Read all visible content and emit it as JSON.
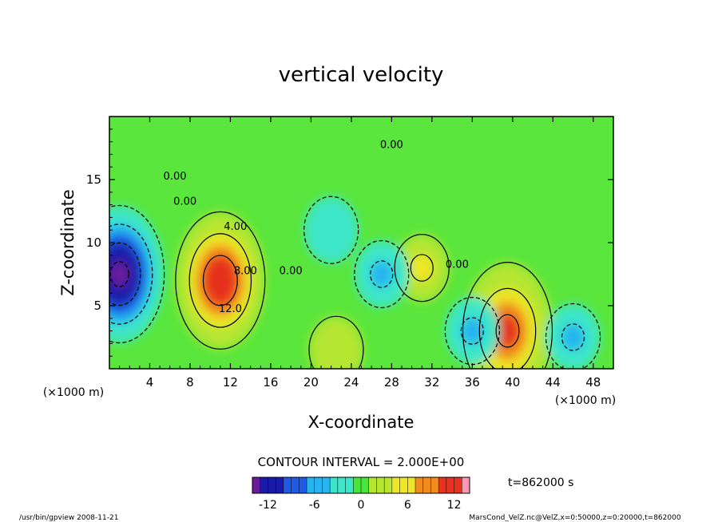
{
  "chart_data": {
    "type": "heatmap",
    "title": "vertical velocity",
    "xlabel": "X-coordinate",
    "ylabel": "Z-coordinate",
    "x_unit_left": "(×1000 m)",
    "x_unit_right": "(×1000 m)",
    "xlim": [
      0,
      50
    ],
    "ylim": [
      0,
      20
    ],
    "x_ticks": [
      "4",
      "8",
      "12",
      "16",
      "20",
      "24",
      "28",
      "32",
      "36",
      "40",
      "44",
      "48"
    ],
    "y_ticks": [
      "5",
      "10",
      "15"
    ],
    "contour_interval_label": "CONTOUR INTERVAL = 2.000E+00",
    "colorbar": {
      "range": [
        -14,
        14
      ],
      "tick_labels": [
        "-12",
        "-6",
        "0",
        "6",
        "12"
      ],
      "colors": [
        "#6a1a9a",
        "#1a1aa8",
        "#1e5ae6",
        "#28b4f0",
        "#3ce6c8",
        "#48e63c",
        "#b4e632",
        "#f0e628",
        "#f08c1e",
        "#e6321e",
        "#ff96b4"
      ]
    },
    "features": [
      {
        "x": 11,
        "z": 7,
        "w": 12,
        "label": "updraft"
      },
      {
        "x": 39.5,
        "z": 3,
        "w": 10,
        "label": "updraft"
      },
      {
        "x": 31,
        "z": 8,
        "w": 6,
        "label": "updraft"
      },
      {
        "x": 1,
        "z": 7.5,
        "w": -14,
        "label": "downdraft"
      },
      {
        "x": 27,
        "z": 7.5,
        "w": -6,
        "label": "downdraft"
      },
      {
        "x": 36,
        "z": 3,
        "w": -6,
        "label": "downdraft"
      },
      {
        "x": 46,
        "z": 2.5,
        "w": -6,
        "label": "downdraft"
      },
      {
        "x": 22.5,
        "z": 1.5,
        "w": 4,
        "label": "updraft"
      },
      {
        "x": 22,
        "z": 11,
        "w": -4,
        "label": "downdraft"
      }
    ],
    "contour_labels": [
      {
        "text": "4.00",
        "x": 12.5,
        "z": 11
      },
      {
        "text": "8.00",
        "x": 13.5,
        "z": 7.5
      },
      {
        "text": "12.0",
        "x": 12,
        "z": 4.5
      },
      {
        "text": "0.00",
        "x": 6.5,
        "z": 15
      },
      {
        "text": "0.00",
        "x": 7.5,
        "z": 13
      },
      {
        "text": "0.00",
        "x": 18,
        "z": 7.5
      },
      {
        "text": "0.00",
        "x": 28,
        "z": 17.5
      },
      {
        "text": "0.00",
        "x": 34.5,
        "z": 8
      }
    ]
  },
  "footer": {
    "time": "t=862000 s",
    "program": "/usr/bin/gpview  2008-11-21",
    "source": "MarsCond_VelZ.nc@VelZ,x=0:50000,z=0:20000,t=862000"
  }
}
